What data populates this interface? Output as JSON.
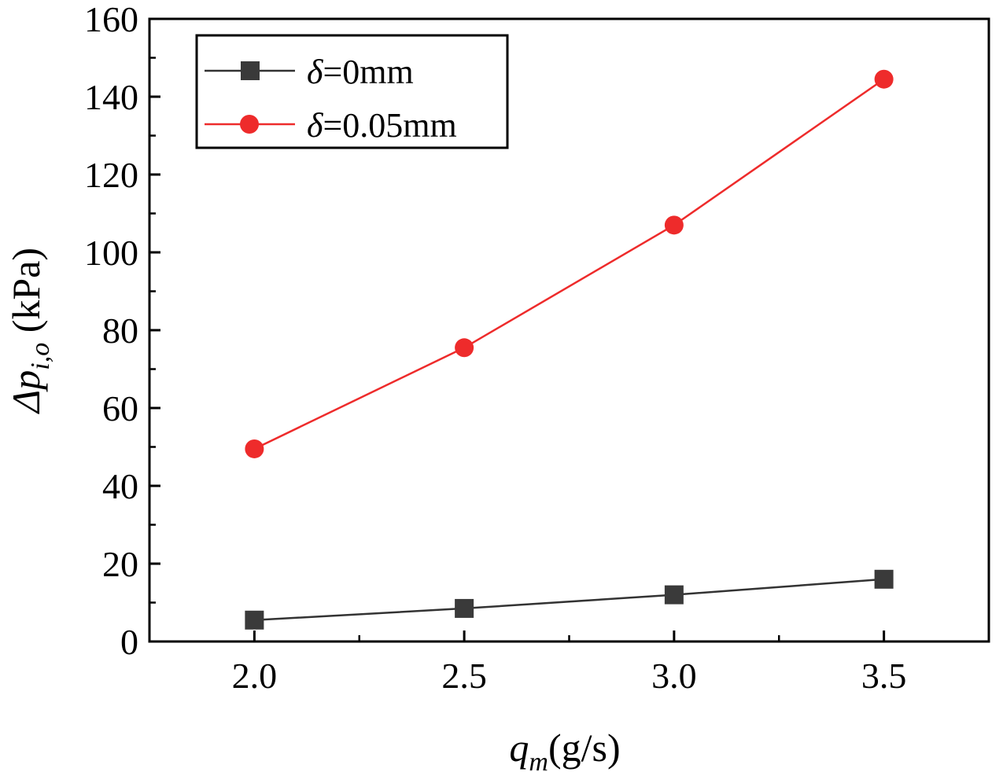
{
  "chart_data": {
    "type": "line",
    "title": "",
    "x": [
      2.0,
      2.5,
      3.0,
      3.5
    ],
    "x_tick_labels": [
      "2.0",
      "2.5",
      "3.0",
      "3.5"
    ],
    "y_tick_labels": [
      "0",
      "20",
      "40",
      "60",
      "80",
      "100",
      "120",
      "140",
      "160"
    ],
    "xlim": [
      1.75,
      3.75
    ],
    "ylim": [
      0,
      160
    ],
    "xlabel": {
      "main": "q",
      "sub": "m",
      "unit": "(g/s)"
    },
    "ylabel": {
      "main": "Δp",
      "sub": "i,o",
      "unit": " (kPa)"
    },
    "grid": false,
    "legend_position": "top-left",
    "series": [
      {
        "name": "δ=0mm",
        "legend": {
          "symbol": "δ",
          "rest": "=0mm"
        },
        "marker": "square",
        "color": "#3a3a3a",
        "line_color": "#333333",
        "values": [
          5.5,
          8.5,
          12,
          16
        ]
      },
      {
        "name": "δ=0.05mm",
        "legend": {
          "symbol": "δ",
          "rest": "=0.05mm"
        },
        "marker": "circle",
        "color": "#ee2b2b",
        "line_color": "#ee2b2b",
        "values": [
          49.5,
          75.5,
          107,
          144.5
        ]
      }
    ]
  }
}
